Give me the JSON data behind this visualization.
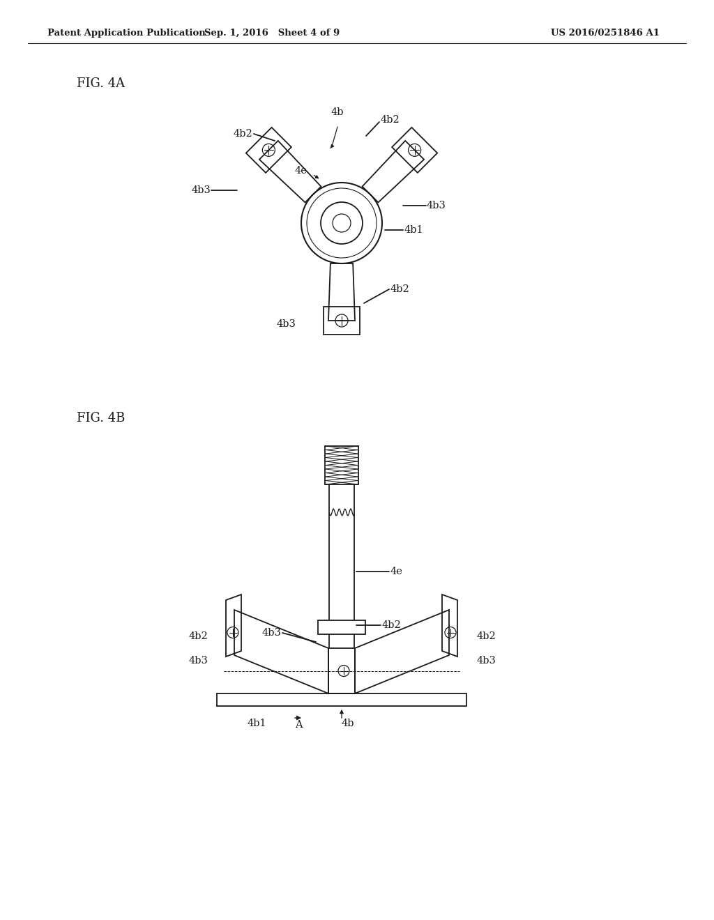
{
  "bg_color": "#ffffff",
  "line_color": "#1a1a1a",
  "header_left": "Patent Application Publication",
  "header_mid": "Sep. 1, 2016   Sheet 4 of 9",
  "header_right": "US 2016/0251846 A1",
  "fig4a_label": "FIG. 4A",
  "fig4b_label": "FIG. 4B",
  "header_fontsize": 9.5,
  "fig_label_fontsize": 13,
  "ref_fontsize": 10.5
}
